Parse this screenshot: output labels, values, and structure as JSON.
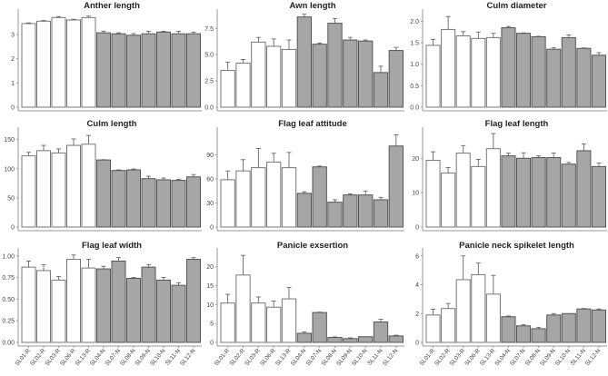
{
  "chart_data": [
    {
      "type": "bar",
      "title": "Anther length",
      "ylim": [
        0,
        3.9
      ],
      "yticks": [
        0,
        1,
        2,
        3
      ],
      "ytick_labels": [
        "0",
        "1",
        "2",
        "3"
      ],
      "values": [
        3.45,
        3.55,
        3.7,
        3.6,
        3.7,
        3.07,
        3.03,
        2.97,
        3.03,
        3.1,
        3.03,
        3.03
      ],
      "errors": [
        0.03,
        0.03,
        0.04,
        0.03,
        0.06,
        0.07,
        0.04,
        0.07,
        0.1,
        0.03,
        0.1,
        0.07
      ]
    },
    {
      "type": "bar",
      "title": "Awn length",
      "ylim": [
        0,
        9
      ],
      "yticks": [
        0,
        2.5,
        5,
        7.5
      ],
      "ytick_labels": [
        "0.0",
        "2.5",
        "5.0",
        "7.5"
      ],
      "values": [
        3.5,
        4.2,
        6.2,
        5.8,
        5.5,
        8.6,
        6.0,
        8.0,
        6.4,
        6.3,
        3.3,
        5.4
      ],
      "errors": [
        0.8,
        0.35,
        0.45,
        0.7,
        0.9,
        0.25,
        0.1,
        0.45,
        0.25,
        0.1,
        0.6,
        0.3
      ]
    },
    {
      "type": "bar",
      "title": "Culm diameter",
      "ylim": [
        0,
        2.2
      ],
      "yticks": [
        0,
        0.5,
        1,
        1.5,
        2
      ],
      "ytick_labels": [
        "0.0",
        "0.5",
        "1.0",
        "1.5",
        "2.0"
      ],
      "values": [
        1.44,
        1.81,
        1.66,
        1.6,
        1.62,
        1.85,
        1.72,
        1.64,
        1.35,
        1.62,
        1.37,
        1.21
      ],
      "errors": [
        0.14,
        0.3,
        0.1,
        0.15,
        0.1,
        0.03,
        0.01,
        0.01,
        0.04,
        0.06,
        0.01,
        0.06
      ]
    },
    {
      "type": "bar",
      "title": "Culm length",
      "ylim": [
        0,
        165
      ],
      "yticks": [
        0,
        50,
        100,
        150
      ],
      "ytick_labels": [
        "0",
        "50",
        "100",
        "150"
      ],
      "values": [
        122,
        131,
        127,
        140,
        142,
        115,
        97,
        98,
        83,
        81,
        80,
        86
      ],
      "errors": [
        6,
        9,
        7,
        11,
        15,
        0.5,
        1,
        1.5,
        4,
        3,
        2,
        4
      ]
    },
    {
      "type": "bar",
      "title": "Flag leaf attitude",
      "ylim": [
        0,
        120
      ],
      "yticks": [
        0,
        30,
        60,
        90
      ],
      "ytick_labels": [
        "0",
        "30",
        "60",
        "90"
      ],
      "values": [
        59,
        70,
        74,
        81,
        74,
        42,
        75,
        31,
        40,
        40,
        34,
        101
      ],
      "errors": [
        11,
        14,
        24,
        11,
        19,
        2,
        1,
        3,
        1.5,
        5,
        3,
        14
      ]
    },
    {
      "type": "bar",
      "title": "Flag leaf length",
      "ylim": [
        0,
        28
      ],
      "yticks": [
        0,
        10,
        20
      ],
      "ytick_labels": [
        "0",
        "10",
        "20"
      ],
      "values": [
        19.4,
        15.7,
        21.5,
        17.6,
        22.8,
        20.7,
        20,
        20.2,
        20.2,
        18.3,
        22.2,
        17.6
      ],
      "errors": [
        2.5,
        1.6,
        2.2,
        2.1,
        4.4,
        0.8,
        1.6,
        0.5,
        1.3,
        0.5,
        2,
        1
      ]
    },
    {
      "type": "bar",
      "title": "Flag leaf width",
      "ylim": [
        0,
        1.05
      ],
      "yticks": [
        0,
        0.25,
        0.5,
        0.75,
        1
      ],
      "ytick_labels": [
        "0.00",
        "0.25",
        "0.50",
        "0.75",
        "1.00"
      ],
      "values": [
        0.87,
        0.83,
        0.72,
        0.96,
        0.86,
        0.85,
        0.94,
        0.74,
        0.87,
        0.72,
        0.66,
        0.96
      ],
      "errors": [
        0.07,
        0.07,
        0.04,
        0.05,
        0.1,
        0.03,
        0.04,
        0.01,
        0.03,
        0.03,
        0.03,
        0.02
      ]
    },
    {
      "type": "bar",
      "title": "Panicle exsertion",
      "ylim": [
        0,
        24
      ],
      "yticks": [
        0,
        5,
        10,
        15,
        20
      ],
      "ytick_labels": [
        "0",
        "5",
        "10",
        "15",
        "20"
      ],
      "values": [
        10.4,
        17.8,
        10.4,
        9.3,
        11.5,
        2.4,
        7.9,
        1.3,
        1.0,
        1.5,
        5.4,
        1.7
      ],
      "errors": [
        2.3,
        5.2,
        1.6,
        1.6,
        3.0,
        0.4,
        0.1,
        0.15,
        0.2,
        0,
        0.7,
        0.2
      ]
    },
    {
      "type": "bar",
      "title": "Panicle neck spikelet length",
      "ylim": [
        0,
        6.3
      ],
      "yticks": [
        0,
        2,
        4,
        6
      ],
      "ytick_labels": [
        "0",
        "2",
        "4",
        "6"
      ],
      "values": [
        1.9,
        2.35,
        4.35,
        4.7,
        3.35,
        1.78,
        1.15,
        0.95,
        1.9,
        2.0,
        2.32,
        2.25
      ],
      "errors": [
        0.4,
        0.35,
        1.65,
        0.8,
        1.3,
        0.05,
        0.07,
        0.1,
        0.1,
        0,
        0.03,
        0.07
      ]
    }
  ],
  "categories": [
    "SL01-R",
    "SL02-R",
    "SL03-R",
    "SL06-R",
    "SL13-R",
    "SL04-N",
    "SL07-N",
    "SL08-N",
    "SL09-N",
    "SL10-N",
    "SL11-N",
    "SL12-N"
  ],
  "colors": {
    "R_fill": "#ffffff",
    "R_stroke": "#777777",
    "N_fill": "#a6a6a6",
    "N_stroke": "#555555",
    "axis": "#999999"
  }
}
